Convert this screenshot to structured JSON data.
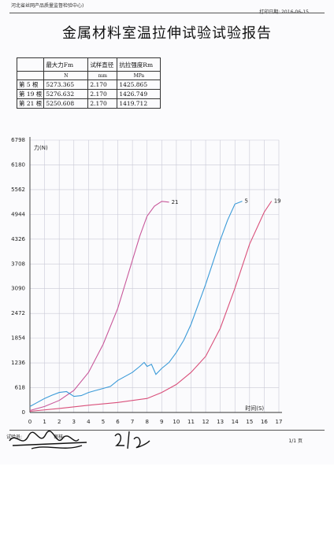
{
  "header": {
    "org": "河北省丝网产品质量监督检验中心)",
    "print_date": "打印日期: 2016-06-15"
  },
  "title": "金属材料室温拉伸试验试验报告",
  "table": {
    "headers": [
      "",
      "最大力Fm",
      "试样直径",
      "抗拉强度Rm"
    ],
    "units": [
      "",
      "N",
      "mm",
      "MPa"
    ],
    "rows": [
      [
        "第 5 根",
        "5273.365",
        "2.170",
        "1425.865"
      ],
      [
        "第 19 根",
        "5276.632",
        "2.170",
        "1426.749"
      ],
      [
        "第 21 根",
        "5250.608",
        "2.170",
        "1419.712"
      ]
    ]
  },
  "chart_data": {
    "type": "line",
    "ylabel": "力(N)",
    "xlabel": "时间(S)",
    "xlim": [
      0,
      17
    ],
    "ylim": [
      0,
      6798
    ],
    "x_ticks": [
      "0",
      "1",
      "2",
      "3",
      "4",
      "5",
      "6",
      "7",
      "8",
      "9",
      "10",
      "11",
      "12",
      "13",
      "14",
      "15",
      "16",
      "17"
    ],
    "y_ticks": [
      "0",
      "618",
      "1236",
      "1854",
      "2472",
      "3090",
      "3708",
      "4326",
      "4944",
      "5562",
      "6180",
      "6798"
    ],
    "series": [
      {
        "name": "21",
        "color": "#c8579a",
        "x": [
          0,
          1,
          2,
          3,
          4,
          5,
          6,
          7,
          7.5,
          8,
          8.5,
          9,
          9.5
        ],
        "y": [
          50,
          150,
          300,
          550,
          1000,
          1700,
          2600,
          3800,
          4400,
          4900,
          5150,
          5270,
          5250
        ]
      },
      {
        "name": "5",
        "color": "#3a9ad8",
        "x": [
          0,
          0.5,
          1,
          1.5,
          2,
          2.5,
          3,
          3.5,
          4,
          4.5,
          5,
          5.5,
          6,
          6.5,
          7,
          7.5,
          7.8,
          8,
          8.3,
          8.6,
          9,
          9.5,
          10,
          10.5,
          11,
          11.5,
          12,
          12.5,
          13,
          13.5,
          14,
          14.5
        ],
        "y": [
          150,
          250,
          350,
          430,
          500,
          520,
          400,
          420,
          500,
          550,
          600,
          650,
          800,
          900,
          1000,
          1150,
          1250,
          1150,
          1200,
          950,
          1100,
          1250,
          1500,
          1800,
          2200,
          2700,
          3200,
          3750,
          4300,
          4800,
          5200,
          5273
        ]
      },
      {
        "name": "19",
        "color": "#d94f7a",
        "x": [
          0,
          2,
          4,
          6,
          8,
          9,
          10,
          11,
          12,
          13,
          14,
          15,
          16,
          16.5
        ],
        "y": [
          30,
          100,
          180,
          250,
          350,
          500,
          700,
          1000,
          1400,
          2100,
          3100,
          4200,
          5000,
          5276
        ]
      }
    ]
  },
  "footer": {
    "tester": "试验员:",
    "reviewer": "审核:",
    "page": "1/1 页"
  }
}
